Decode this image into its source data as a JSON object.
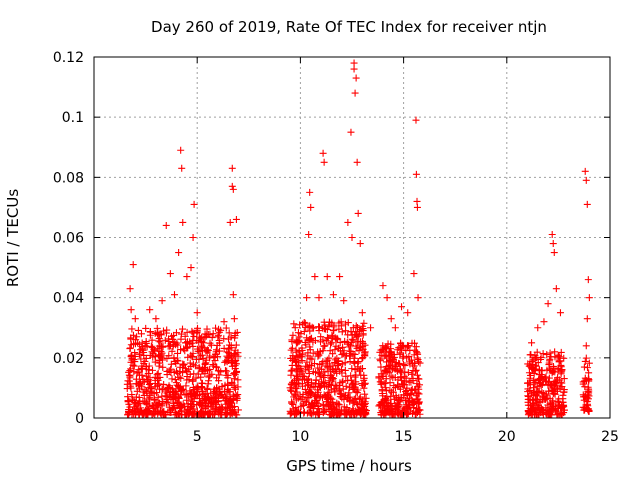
{
  "chart_data": {
    "type": "scatter",
    "title": "Day 260 of 2019, Rate Of TEC Index for receiver ntjn",
    "xlabel": "GPS time / hours",
    "ylabel": "ROTI / TECUs",
    "xlim": [
      0,
      25
    ],
    "ylim": [
      0,
      0.12
    ],
    "xticks": [
      "0",
      "5",
      "10",
      "15",
      "20",
      "25"
    ],
    "yticks": [
      "0",
      "0.02",
      "0.04",
      "0.06",
      "0.08",
      "0.1",
      "0.12"
    ],
    "grid": true,
    "marker": "+",
    "color": "#ff0000",
    "series": [
      {
        "name": "ROTI",
        "points": [
          [
            1.75,
            0.043
          ],
          [
            1.9,
            0.051
          ],
          [
            1.8,
            0.036
          ],
          [
            2.0,
            0.033
          ],
          [
            2.3,
            0.028
          ],
          [
            2.7,
            0.036
          ],
          [
            3.0,
            0.033
          ],
          [
            3.3,
            0.039
          ],
          [
            3.5,
            0.064
          ],
          [
            3.7,
            0.048
          ],
          [
            3.9,
            0.041
          ],
          [
            4.1,
            0.055
          ],
          [
            4.2,
            0.089
          ],
          [
            4.25,
            0.083
          ],
          [
            4.3,
            0.065
          ],
          [
            4.5,
            0.047
          ],
          [
            4.7,
            0.05
          ],
          [
            4.8,
            0.06
          ],
          [
            4.85,
            0.071
          ],
          [
            5.0,
            0.035
          ],
          [
            5.3,
            0.025
          ],
          [
            5.6,
            0.02
          ],
          [
            6.0,
            0.027
          ],
          [
            6.3,
            0.032
          ],
          [
            6.6,
            0.065
          ],
          [
            6.7,
            0.077
          ],
          [
            6.7,
            0.083
          ],
          [
            6.75,
            0.076
          ],
          [
            6.9,
            0.066
          ],
          [
            6.75,
            0.041
          ],
          [
            6.8,
            0.033
          ],
          [
            6.9,
            0.018
          ],
          [
            9.8,
            0.014
          ],
          [
            10.3,
            0.04
          ],
          [
            10.4,
            0.061
          ],
          [
            10.45,
            0.075
          ],
          [
            10.5,
            0.07
          ],
          [
            10.7,
            0.047
          ],
          [
            10.9,
            0.04
          ],
          [
            11.1,
            0.088
          ],
          [
            11.15,
            0.085
          ],
          [
            11.3,
            0.047
          ],
          [
            11.6,
            0.041
          ],
          [
            11.9,
            0.047
          ],
          [
            12.1,
            0.039
          ],
          [
            12.3,
            0.065
          ],
          [
            12.45,
            0.095
          ],
          [
            12.5,
            0.06
          ],
          [
            12.6,
            0.116
          ],
          [
            12.6,
            0.118
          ],
          [
            12.65,
            0.108
          ],
          [
            12.7,
            0.113
          ],
          [
            12.75,
            0.085
          ],
          [
            12.8,
            0.068
          ],
          [
            12.9,
            0.058
          ],
          [
            13.0,
            0.035
          ],
          [
            13.4,
            0.03
          ],
          [
            14.0,
            0.044
          ],
          [
            14.2,
            0.04
          ],
          [
            14.4,
            0.033
          ],
          [
            14.6,
            0.03
          ],
          [
            14.9,
            0.037
          ],
          [
            15.2,
            0.035
          ],
          [
            15.5,
            0.048
          ],
          [
            15.6,
            0.099
          ],
          [
            15.62,
            0.081
          ],
          [
            15.65,
            0.072
          ],
          [
            15.67,
            0.07
          ],
          [
            15.7,
            0.04
          ],
          [
            21.2,
            0.025
          ],
          [
            21.5,
            0.03
          ],
          [
            21.8,
            0.032
          ],
          [
            22.0,
            0.038
          ],
          [
            22.2,
            0.061
          ],
          [
            22.25,
            0.058
          ],
          [
            22.3,
            0.055
          ],
          [
            22.4,
            0.043
          ],
          [
            22.6,
            0.035
          ],
          [
            23.8,
            0.082
          ],
          [
            23.85,
            0.079
          ],
          [
            23.9,
            0.071
          ],
          [
            23.95,
            0.046
          ],
          [
            24.0,
            0.04
          ],
          [
            23.9,
            0.033
          ],
          [
            23.85,
            0.024
          ]
        ],
        "dense_bands": [
          {
            "x_start": 1.6,
            "x_end": 7.0,
            "y_min": 0.001,
            "y_max": 0.03
          },
          {
            "x_start": 9.5,
            "x_end": 13.2,
            "y_min": 0.001,
            "y_max": 0.032
          },
          {
            "x_start": 13.8,
            "x_end": 15.8,
            "y_min": 0.001,
            "y_max": 0.025
          },
          {
            "x_start": 21.0,
            "x_end": 22.8,
            "y_min": 0.001,
            "y_max": 0.022
          },
          {
            "x_start": 23.7,
            "x_end": 24.0,
            "y_min": 0.002,
            "y_max": 0.02
          }
        ]
      }
    ]
  }
}
